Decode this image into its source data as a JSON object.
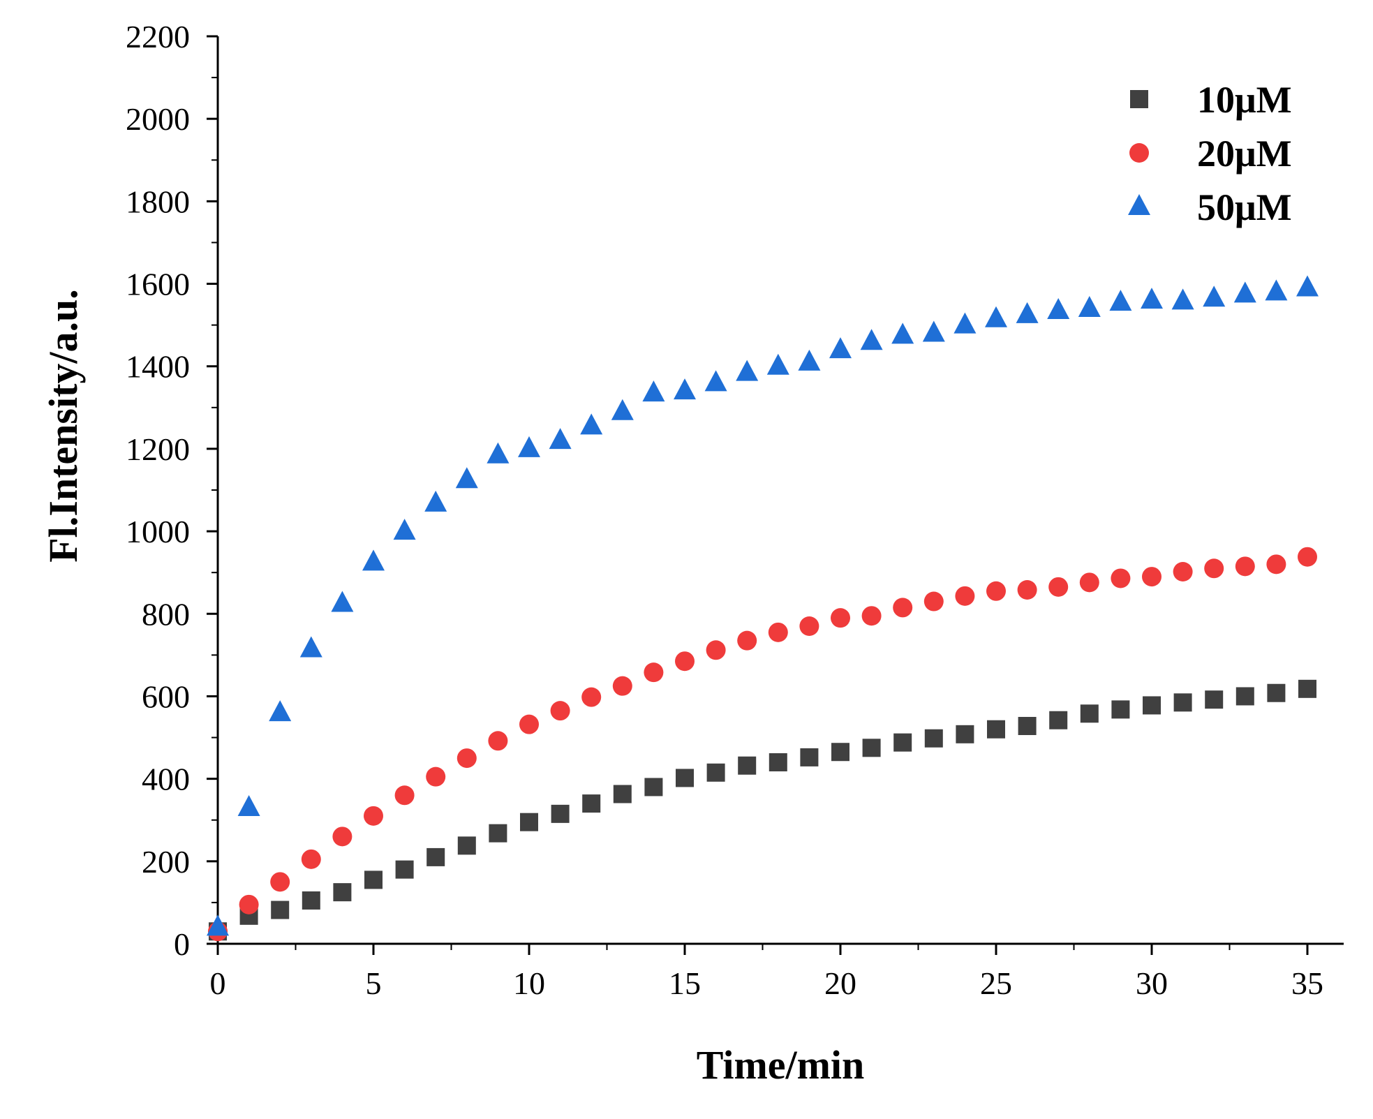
{
  "chart_data": {
    "type": "scatter",
    "title": "",
    "xlabel": "Time/min",
    "ylabel": "Fl.Intensity/a.u.",
    "xlim": [
      0,
      36
    ],
    "ylim": [
      0,
      2200
    ],
    "xticks": [
      0,
      5,
      10,
      15,
      20,
      25,
      30,
      35
    ],
    "yticks": [
      0,
      200,
      400,
      600,
      800,
      1000,
      1200,
      1400,
      1600,
      1800,
      2000,
      2200
    ],
    "legend_position": "top-right",
    "grid": false,
    "x": [
      0,
      1,
      2,
      3,
      4,
      5,
      6,
      7,
      8,
      9,
      10,
      11,
      12,
      13,
      14,
      15,
      16,
      17,
      18,
      19,
      20,
      21,
      22,
      23,
      24,
      25,
      26,
      27,
      28,
      29,
      30,
      31,
      32,
      33,
      34,
      35
    ],
    "series": [
      {
        "name": "10μM",
        "marker": "square",
        "color": "#404040",
        "values": [
          30,
          68,
          82,
          105,
          125,
          155,
          180,
          210,
          238,
          268,
          295,
          315,
          340,
          363,
          380,
          402,
          415,
          432,
          440,
          452,
          465,
          475,
          488,
          498,
          508,
          520,
          528,
          542,
          558,
          568,
          578,
          585,
          592,
          600,
          608,
          618
        ]
      },
      {
        "name": "20μM",
        "marker": "circle",
        "color": "#ef3b3b",
        "values": [
          30,
          95,
          150,
          205,
          260,
          310,
          360,
          405,
          450,
          492,
          532,
          565,
          598,
          625,
          658,
          685,
          712,
          735,
          755,
          770,
          790,
          795,
          815,
          830,
          843,
          855,
          858,
          865,
          876,
          886,
          890,
          902,
          910,
          915,
          920,
          938
        ]
      },
      {
        "name": "50μM",
        "marker": "triangle",
        "color": "#1f6fd6",
        "values": [
          40,
          330,
          560,
          715,
          825,
          925,
          1000,
          1068,
          1125,
          1185,
          1200,
          1220,
          1255,
          1290,
          1335,
          1340,
          1360,
          1385,
          1400,
          1410,
          1440,
          1460,
          1475,
          1480,
          1500,
          1515,
          1525,
          1535,
          1540,
          1555,
          1560,
          1558,
          1565,
          1575,
          1580,
          1590
        ]
      }
    ]
  }
}
